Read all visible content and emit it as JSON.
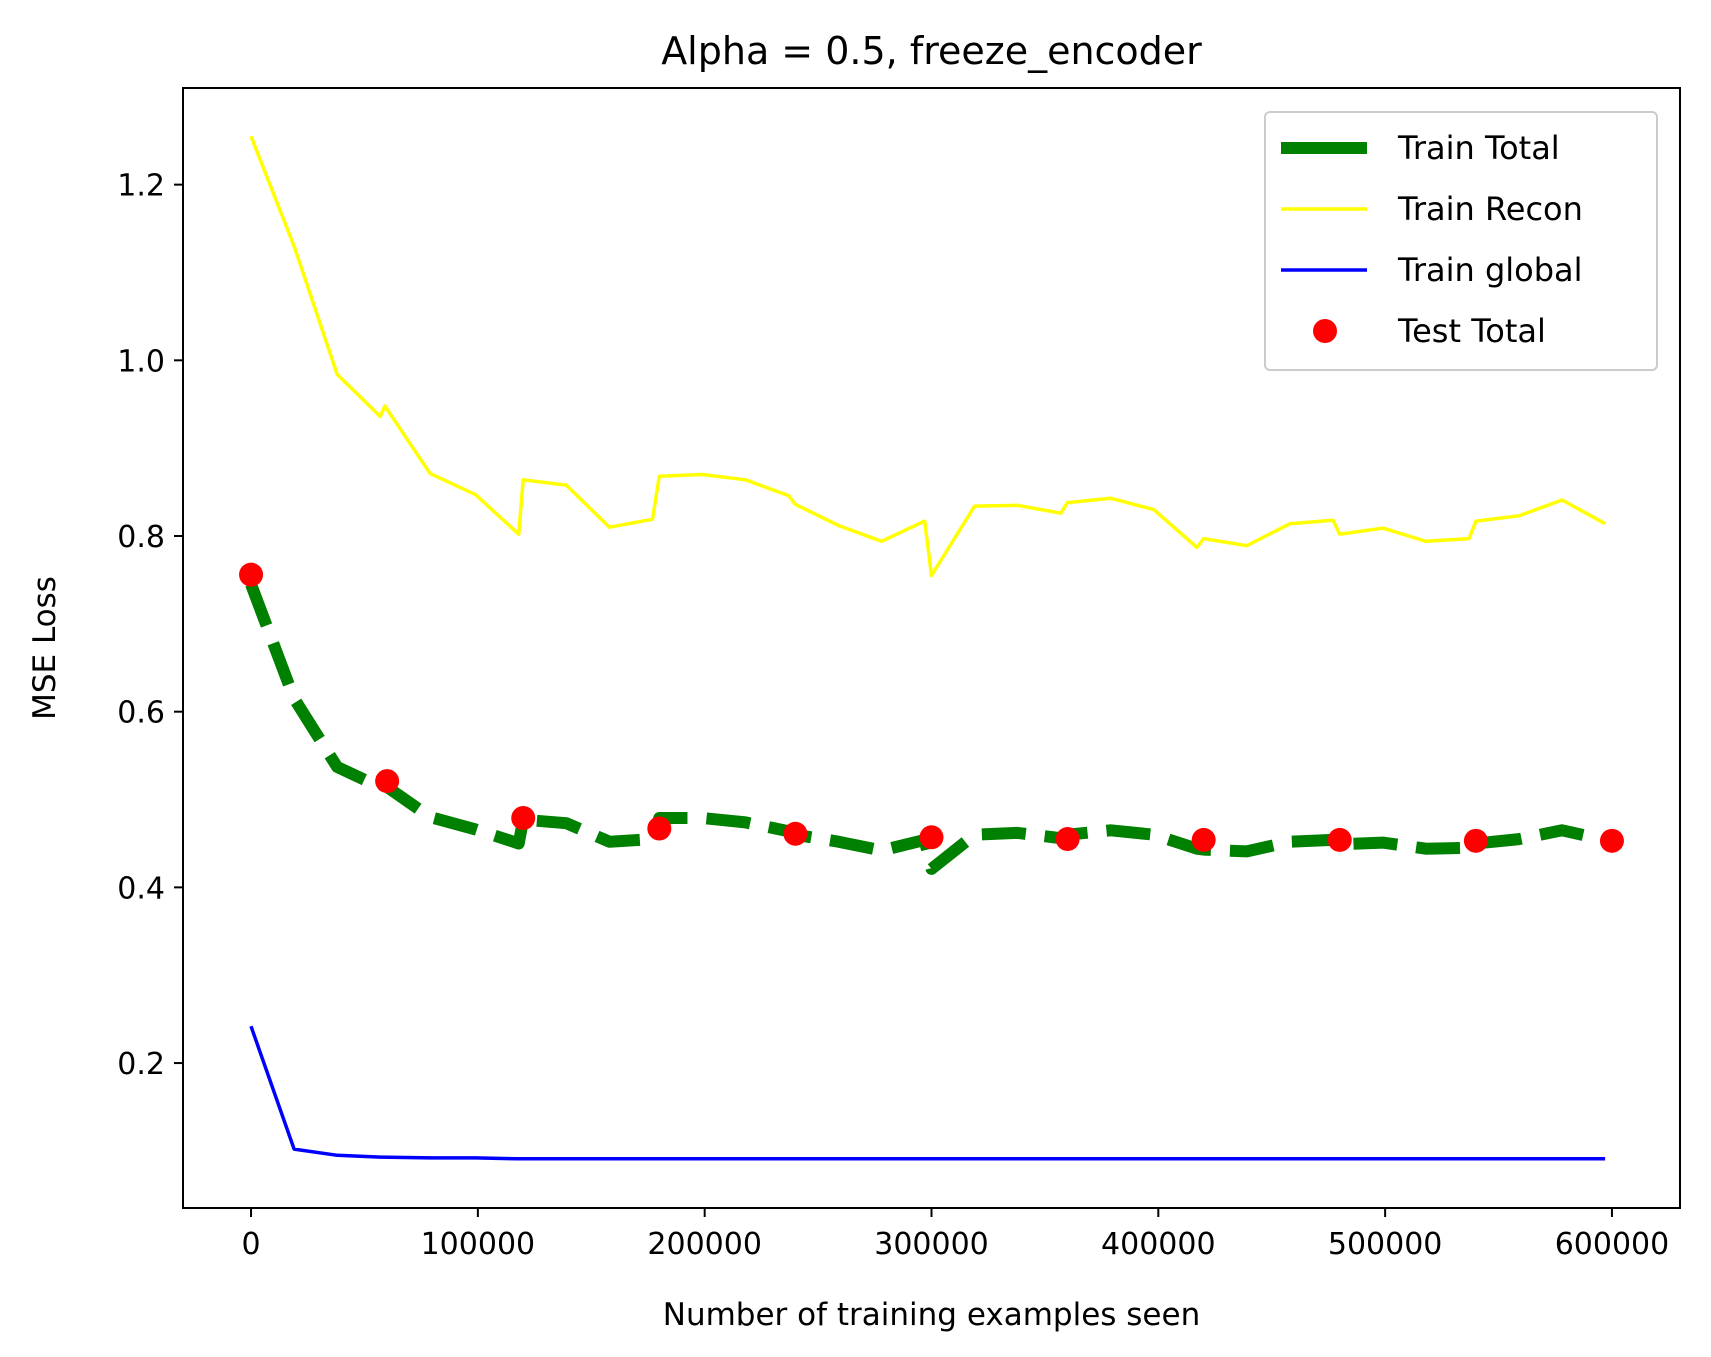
{
  "chart_data": {
    "type": "line",
    "title": "Alpha = 0.5, freeze_encoder",
    "xlabel": "Number of training examples seen",
    "ylabel": "MSE Loss",
    "xlim": [
      -30000,
      630000
    ],
    "ylim": [
      0.035,
      1.31
    ],
    "xticks": [
      0,
      100000,
      200000,
      300000,
      400000,
      500000,
      600000
    ],
    "yticks": [
      0.2,
      0.4,
      0.6,
      0.8,
      1.0,
      1.2
    ],
    "xtick_labels": [
      "0",
      "100000",
      "200000",
      "300000",
      "400000",
      "500000",
      "600000"
    ],
    "ytick_labels": [
      "0.2",
      "0.4",
      "0.6",
      "0.8",
      "1.0",
      "1.2"
    ],
    "grid": false,
    "legend_position": "top-right",
    "series": [
      {
        "name": "Train Total",
        "style": "dashed",
        "color": "#008000",
        "x": [
          0,
          19000,
          38000,
          57000,
          59000,
          79000,
          99000,
          118000,
          120000,
          139000,
          158000,
          177000,
          180000,
          199000,
          218000,
          237000,
          240000,
          259000,
          278000,
          297000,
          300000,
          319000,
          338000,
          357000,
          360000,
          379000,
          398000,
          417000,
          420000,
          439000,
          458000,
          477000,
          480000,
          499000,
          518000,
          537000,
          540000,
          559000,
          578000,
          597000
        ],
        "y": [
          0.745,
          0.615,
          0.537,
          0.514,
          0.516,
          0.48,
          0.466,
          0.45,
          0.477,
          0.473,
          0.452,
          0.455,
          0.479,
          0.479,
          0.474,
          0.464,
          0.46,
          0.452,
          0.442,
          0.454,
          0.421,
          0.46,
          0.462,
          0.456,
          0.46,
          0.465,
          0.46,
          0.444,
          0.443,
          0.441,
          0.452,
          0.454,
          0.449,
          0.451,
          0.444,
          0.445,
          0.45,
          0.455,
          0.465,
          0.454
        ]
      },
      {
        "name": "Train Recon",
        "style": "solid",
        "color": "#ffff00",
        "x": [
          0,
          19000,
          38000,
          57000,
          59000,
          79000,
          99000,
          118000,
          120000,
          139000,
          158000,
          177000,
          180000,
          199000,
          218000,
          237000,
          240000,
          259000,
          278000,
          297000,
          300000,
          319000,
          338000,
          357000,
          360000,
          379000,
          398000,
          417000,
          420000,
          439000,
          458000,
          477000,
          480000,
          499000,
          518000,
          537000,
          540000,
          559000,
          578000,
          597000
        ],
        "y": [
          1.255,
          1.13,
          0.984,
          0.936,
          0.948,
          0.871,
          0.847,
          0.802,
          0.864,
          0.858,
          0.81,
          0.819,
          0.868,
          0.87,
          0.864,
          0.846,
          0.836,
          0.812,
          0.794,
          0.817,
          0.755,
          0.834,
          0.835,
          0.826,
          0.838,
          0.843,
          0.83,
          0.787,
          0.797,
          0.789,
          0.814,
          0.818,
          0.802,
          0.809,
          0.794,
          0.797,
          0.817,
          0.823,
          0.841,
          0.814
        ]
      },
      {
        "name": "Train global",
        "style": "solid",
        "color": "#0000ff",
        "x": [
          0,
          19000,
          38000,
          57000,
          79000,
          99000,
          118000,
          139000,
          158000,
          177000,
          199000,
          218000,
          237000,
          259000,
          278000,
          297000,
          319000,
          338000,
          357000,
          379000,
          398000,
          417000,
          439000,
          458000,
          477000,
          499000,
          518000,
          537000,
          559000,
          578000,
          597000
        ],
        "y": [
          0.242,
          0.102,
          0.095,
          0.093,
          0.092,
          0.092,
          0.091,
          0.091,
          0.091,
          0.091,
          0.091,
          0.091,
          0.091,
          0.091,
          0.091,
          0.091,
          0.091,
          0.091,
          0.091,
          0.091,
          0.091,
          0.091,
          0.091,
          0.091,
          0.091,
          0.091,
          0.091,
          0.091,
          0.091,
          0.091,
          0.091
        ]
      },
      {
        "name": "Test Total",
        "style": "scatter",
        "color": "#ff0000",
        "x": [
          0,
          60000,
          120000,
          180000,
          240000,
          300000,
          360000,
          420000,
          480000,
          540000,
          600000
        ],
        "y": [
          0.756,
          0.521,
          0.479,
          0.467,
          0.461,
          0.457,
          0.455,
          0.454,
          0.454,
          0.453,
          0.453
        ]
      }
    ]
  }
}
